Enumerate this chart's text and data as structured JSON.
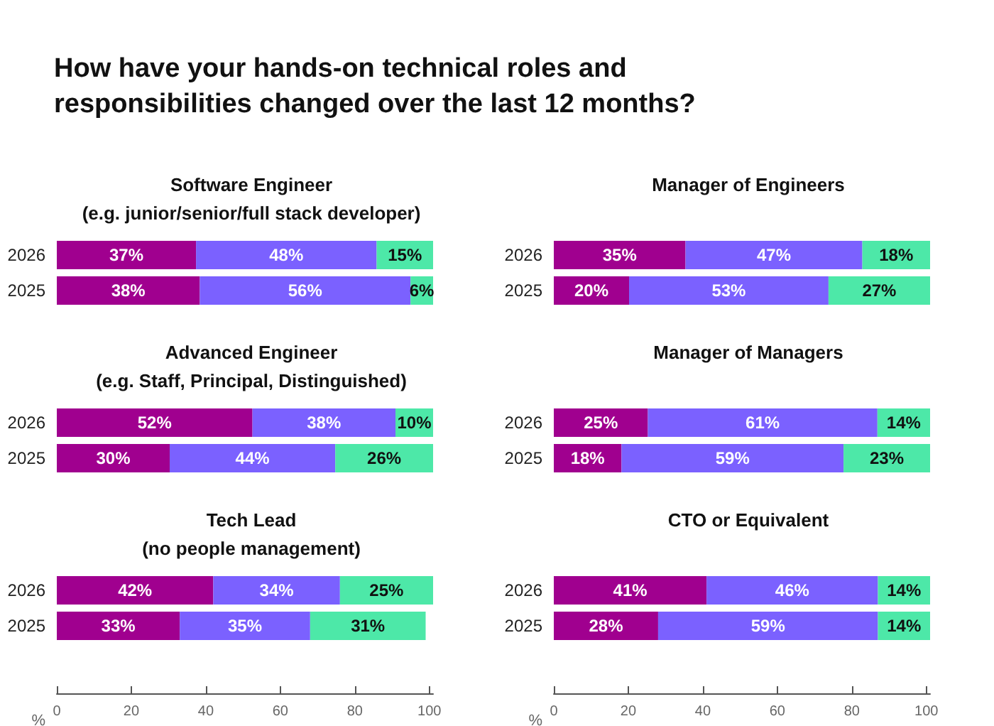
{
  "chart_data": [
    {
      "type": "other",
      "title": "How have your hands-on technical roles and\nresponsibilities changed over the last 12 months?"
    },
    {
      "type": "bar",
      "orientation": "horizontal",
      "stacked": true,
      "title": "Software Engineer\n(e.g. junior/senior/full stack developer)",
      "categories": [
        "2026",
        "2025"
      ],
      "xlim": [
        0,
        100
      ],
      "tick_labels": "y",
      "series": [
        {
          "color": "#a0008f",
          "values": [
            37,
            38
          ],
          "value_labels": [
            "37%",
            "38%"
          ]
        },
        {
          "color": "#7b61ff",
          "values": [
            48,
            56
          ],
          "value_labels": [
            "48%",
            "56%"
          ]
        },
        {
          "color": "#4de8a8",
          "values": [
            15,
            6
          ],
          "value_labels": [
            "15%",
            "6%"
          ]
        }
      ]
    },
    {
      "type": "bar",
      "orientation": "horizontal",
      "stacked": true,
      "title": "Manager of Engineers",
      "categories": [
        "2026",
        "2025"
      ],
      "xlim": [
        0,
        100
      ],
      "tick_labels": "y",
      "series": [
        {
          "color": "#a0008f",
          "values": [
            35,
            20
          ],
          "value_labels": [
            "35%",
            "20%"
          ]
        },
        {
          "color": "#7b61ff",
          "values": [
            47,
            53
          ],
          "value_labels": [
            "47%",
            "53%"
          ]
        },
        {
          "color": "#4de8a8",
          "values": [
            18,
            27
          ],
          "value_labels": [
            "18%",
            "27%"
          ]
        }
      ]
    },
    {
      "type": "bar",
      "orientation": "horizontal",
      "stacked": true,
      "title": "Advanced Engineer\n(e.g. Staff, Principal, Distinguished)",
      "categories": [
        "2026",
        "2025"
      ],
      "xlim": [
        0,
        100
      ],
      "tick_labels": "y",
      "series": [
        {
          "color": "#a0008f",
          "values": [
            52,
            30
          ],
          "value_labels": [
            "52%",
            "30%"
          ]
        },
        {
          "color": "#7b61ff",
          "values": [
            38,
            44
          ],
          "value_labels": [
            "38%",
            "44%"
          ]
        },
        {
          "color": "#4de8a8",
          "values": [
            10,
            26
          ],
          "value_labels": [
            "10%",
            "26%"
          ]
        }
      ]
    },
    {
      "type": "bar",
      "orientation": "horizontal",
      "stacked": true,
      "title": "Manager of Managers",
      "categories": [
        "2026",
        "2025"
      ],
      "xlim": [
        0,
        100
      ],
      "tick_labels": "y",
      "series": [
        {
          "color": "#a0008f",
          "values": [
            25,
            18
          ],
          "value_labels": [
            "25%",
            "18%"
          ]
        },
        {
          "color": "#7b61ff",
          "values": [
            61,
            59
          ],
          "value_labels": [
            "61%",
            "59%"
          ]
        },
        {
          "color": "#4de8a8",
          "values": [
            14,
            23
          ],
          "value_labels": [
            "14%",
            "23%"
          ]
        }
      ]
    },
    {
      "type": "bar",
      "orientation": "horizontal",
      "stacked": true,
      "title": "Tech Lead\n(no people management)",
      "categories": [
        "2026",
        "2025"
      ],
      "xlim": [
        0,
        101
      ],
      "xticks": [
        0,
        20,
        40,
        60,
        80,
        100
      ],
      "xlabel": "%",
      "series": [
        {
          "color": "#a0008f",
          "values": [
            42,
            33
          ],
          "value_labels": [
            "42%",
            "33%"
          ]
        },
        {
          "color": "#7b61ff",
          "values": [
            34,
            35
          ],
          "value_labels": [
            "34%",
            "35%"
          ]
        },
        {
          "color": "#4de8a8",
          "values": [
            25,
            31
          ],
          "value_labels": [
            "25%",
            "31%"
          ]
        }
      ]
    },
    {
      "type": "bar",
      "orientation": "horizontal",
      "stacked": true,
      "title": "CTO or Equivalent",
      "categories": [
        "2026",
        "2025"
      ],
      "xlim": [
        0,
        101
      ],
      "xticks": [
        0,
        20,
        40,
        60,
        80,
        100
      ],
      "xlabel": "%",
      "series": [
        {
          "color": "#a0008f",
          "values": [
            41,
            28
          ],
          "value_labels": [
            "41%",
            "28%"
          ]
        },
        {
          "color": "#7b61ff",
          "values": [
            46,
            59
          ],
          "value_labels": [
            "46%",
            "59%"
          ]
        },
        {
          "color": "#4de8a8",
          "values": [
            14,
            14
          ],
          "value_labels": [
            "14%",
            "14%"
          ]
        }
      ]
    }
  ]
}
